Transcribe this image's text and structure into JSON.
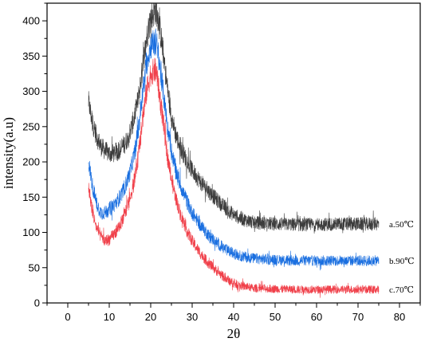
{
  "chart_data": {
    "type": "line",
    "title": "",
    "xlabel": "2θ",
    "ylabel": "intensity(a.u)",
    "xlim": [
      -5,
      85
    ],
    "ylim": [
      0,
      425
    ],
    "xticks": [
      0,
      10,
      20,
      30,
      40,
      50,
      60,
      70,
      80
    ],
    "yticks": [
      0,
      50,
      100,
      150,
      200,
      250,
      300,
      350,
      400
    ],
    "grid": false,
    "legend": "none",
    "series": [
      {
        "name": "a.50℃",
        "color": "#3c3c3c",
        "x": [
          5,
          6,
          7,
          8,
          9,
          10,
          11,
          12,
          13,
          14,
          15,
          16,
          17,
          18,
          19,
          20,
          21,
          21.5,
          22,
          23,
          24,
          25,
          26,
          27,
          28,
          29,
          30,
          32,
          34,
          36,
          38,
          40,
          42,
          45,
          50,
          55,
          60,
          65,
          70,
          75
        ],
        "y": [
          285,
          255,
          235,
          222,
          216,
          212,
          212,
          215,
          220,
          228,
          242,
          262,
          290,
          330,
          375,
          405,
          415,
          412,
          398,
          355,
          305,
          265,
          240,
          222,
          210,
          198,
          188,
          172,
          158,
          146,
          135,
          125,
          119,
          114,
          112,
          111,
          111,
          112,
          112,
          112
        ]
      },
      {
        "name": "b.90℃",
        "color": "#1a6fe0",
        "x": [
          5,
          6,
          7,
          8,
          9,
          10,
          11,
          12,
          13,
          14,
          15,
          16,
          17,
          18,
          19,
          20,
          21,
          21.5,
          22,
          23,
          24,
          25,
          26,
          27,
          28,
          29,
          30,
          32,
          34,
          36,
          38,
          40,
          42,
          45,
          50,
          55,
          60,
          65,
          70,
          75
        ],
        "y": [
          200,
          165,
          140,
          128,
          128,
          133,
          138,
          145,
          155,
          168,
          185,
          210,
          245,
          295,
          340,
          365,
          370,
          365,
          345,
          300,
          252,
          215,
          190,
          170,
          154,
          140,
          128,
          110,
          96,
          85,
          76,
          70,
          66,
          63,
          61,
          60,
          60,
          60,
          60,
          60
        ]
      },
      {
        "name": "c.70℃",
        "color": "#f0404a",
        "x": [
          5,
          6,
          7,
          8,
          9,
          10,
          11,
          12,
          13,
          14,
          15,
          16,
          17,
          18,
          19,
          20,
          21,
          21.5,
          22,
          23,
          24,
          25,
          26,
          27,
          28,
          29,
          30,
          32,
          34,
          36,
          38,
          40,
          42,
          45,
          50,
          55,
          60,
          65,
          70,
          75
        ],
        "y": [
          165,
          128,
          105,
          95,
          88,
          90,
          96,
          105,
          115,
          130,
          148,
          172,
          208,
          258,
          300,
          325,
          330,
          325,
          300,
          258,
          210,
          175,
          150,
          130,
          113,
          99,
          88,
          70,
          56,
          45,
          35,
          28,
          24,
          21,
          20,
          19,
          19,
          19,
          19,
          19
        ]
      }
    ]
  }
}
